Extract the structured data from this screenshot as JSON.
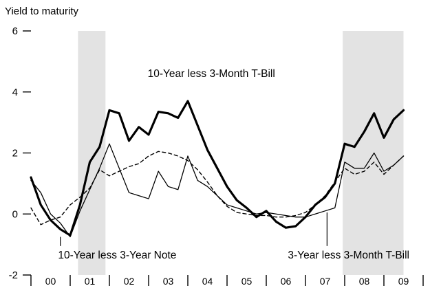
{
  "chart_data": {
    "type": "line",
    "title": "",
    "ylabel": "Yield to maturity",
    "xlabel": "",
    "ylim": [
      -2,
      6
    ],
    "yticks": [
      -2,
      0,
      2,
      4,
      6
    ],
    "xlim": [
      2000.0,
      2010.0
    ],
    "grid": false,
    "categories": [
      "00",
      "01",
      "02",
      "03",
      "04",
      "05",
      "06",
      "07",
      "08",
      "09"
    ],
    "shaded_periods": [
      [
        2001.2,
        2001.9
      ],
      [
        2007.95,
        2009.5
      ]
    ],
    "colors": {
      "line": "#000000",
      "shade": "#e3e3e3",
      "background": "#ffffff"
    },
    "series": [
      {
        "name": "10-Year less 3-Month T-Bill",
        "style": "solid-thick",
        "label_value": [
          2004.6,
          4.6
        ],
        "x": [
          2000.0,
          2000.25,
          2000.5,
          2000.75,
          2001.0,
          2001.25,
          2001.5,
          2001.75,
          2002.0,
          2002.25,
          2002.5,
          2002.75,
          2003.0,
          2003.25,
          2003.5,
          2003.75,
          2004.0,
          2004.25,
          2004.5,
          2004.75,
          2005.0,
          2005.25,
          2005.5,
          2005.75,
          2006.0,
          2006.25,
          2006.5,
          2006.75,
          2007.0,
          2007.25,
          2007.5,
          2007.75,
          2008.0,
          2008.25,
          2008.5,
          2008.75,
          2009.0,
          2009.25,
          2009.5
        ],
        "y": [
          1.2,
          0.3,
          -0.2,
          -0.5,
          -0.7,
          0.3,
          1.7,
          2.2,
          3.4,
          3.3,
          2.4,
          2.85,
          2.6,
          3.35,
          3.3,
          3.15,
          3.7,
          2.9,
          2.1,
          1.5,
          0.9,
          0.45,
          0.2,
          -0.1,
          0.1,
          -0.25,
          -0.45,
          -0.4,
          -0.1,
          0.3,
          0.55,
          1.0,
          2.3,
          2.2,
          2.7,
          3.3,
          2.5,
          3.1,
          3.4
        ]
      },
      {
        "name": "10-Year less 3-Year Note",
        "style": "solid-thin",
        "label_value": [
          2002.2,
          -1.35
        ],
        "x": [
          2000.0,
          2000.25,
          2000.5,
          2000.75,
          2001.0,
          2001.25,
          2001.5,
          2001.75,
          2002.0,
          2002.25,
          2002.5,
          2002.75,
          2003.0,
          2003.25,
          2003.5,
          2003.75,
          2004.0,
          2004.25,
          2004.5,
          2004.75,
          2005.0,
          2005.25,
          2005.5,
          2005.75,
          2006.0,
          2006.25,
          2006.5,
          2006.75,
          2007.0,
          2007.25,
          2007.5,
          2007.75,
          2008.0,
          2008.25,
          2008.5,
          2008.75,
          2009.0,
          2009.25,
          2009.5
        ],
        "y": [
          1.1,
          0.7,
          0.0,
          -0.3,
          -0.75,
          0.1,
          0.8,
          1.5,
          2.3,
          1.5,
          0.7,
          0.6,
          0.5,
          1.4,
          0.9,
          0.8,
          1.9,
          1.1,
          0.9,
          0.6,
          0.3,
          0.2,
          0.1,
          0.0,
          0.05,
          0.0,
          -0.05,
          -0.1,
          -0.1,
          0.0,
          0.1,
          0.2,
          1.7,
          1.5,
          1.5,
          2.0,
          1.4,
          1.6,
          1.9
        ]
      },
      {
        "name": "3-Year less 3-Month T-Bill",
        "style": "dashed",
        "label_value": [
          2008.1,
          -1.35
        ],
        "x": [
          2000.0,
          2000.25,
          2000.5,
          2000.75,
          2001.0,
          2001.25,
          2001.5,
          2001.75,
          2002.0,
          2002.25,
          2002.5,
          2002.75,
          2003.0,
          2003.25,
          2003.5,
          2003.75,
          2004.0,
          2004.25,
          2004.5,
          2004.75,
          2005.0,
          2005.25,
          2005.5,
          2005.75,
          2006.0,
          2006.25,
          2006.5,
          2006.75,
          2007.0,
          2007.25,
          2007.5,
          2007.75,
          2008.0,
          2008.25,
          2008.5,
          2008.75,
          2009.0,
          2009.25,
          2009.5
        ],
        "y": [
          0.2,
          -0.35,
          -0.2,
          -0.1,
          0.3,
          0.55,
          0.85,
          1.45,
          1.25,
          1.4,
          1.55,
          1.65,
          1.9,
          2.05,
          2.0,
          1.9,
          1.75,
          1.45,
          1.05,
          0.6,
          0.25,
          0.05,
          0.0,
          -0.05,
          -0.05,
          -0.1,
          -0.1,
          -0.05,
          0.05,
          0.3,
          0.6,
          1.05,
          1.5,
          1.3,
          1.4,
          1.7,
          1.3,
          1.6,
          1.9
        ]
      }
    ]
  }
}
